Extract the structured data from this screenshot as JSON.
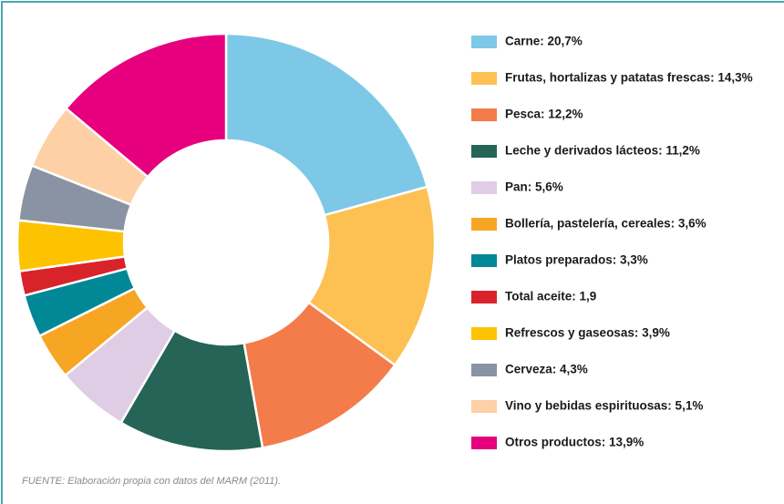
{
  "chart_data": {
    "type": "donut",
    "categories": [
      "Carne: 20,7%",
      "Frutas, hortalizas y patatas frescas: 14,3%",
      "Pesca: 12,2%",
      "Leche y derivados lácteos: 11,2%",
      "Pan: 5,6%",
      "Bollería, pastelería, cereales: 3,6%",
      "Platos preparados: 3,3%",
      "Total aceite: 1,9",
      "Refrescos y gaseosas: 3,9%",
      "Cerveza: 4,3%",
      "Vino y bebidas espirituosas: 5,1%",
      "Otros productos: 13,9%"
    ],
    "values": [
      20.7,
      14.3,
      12.2,
      11.2,
      5.6,
      3.6,
      3.3,
      1.9,
      3.9,
      4.3,
      5.1,
      13.9
    ],
    "colors": [
      "#7dc8e6",
      "#fdc052",
      "#f47c4a",
      "#256457",
      "#dfcde6",
      "#f6a623",
      "#008896",
      "#d8232a",
      "#fdc300",
      "#8a93a3",
      "#fdd0a6",
      "#e6007e"
    ],
    "legend": "right",
    "source": "FUENTE: Elaboración propia con datos del MARM (2011)."
  }
}
